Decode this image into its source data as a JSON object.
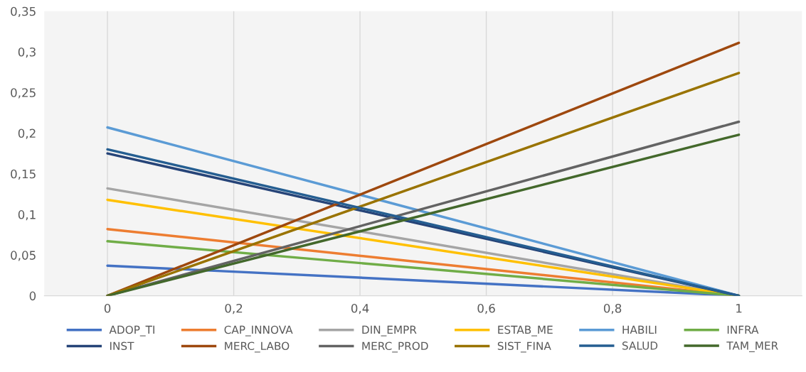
{
  "chart_data": {
    "type": "line",
    "x": [
      0,
      1
    ],
    "series": [
      {
        "name": "ADOP_TI",
        "color": "#4472c4",
        "values": [
          0.037,
          0
        ]
      },
      {
        "name": "CAP_INNOVA",
        "color": "#ed7d31",
        "values": [
          0.082,
          0
        ]
      },
      {
        "name": "DIN_EMPR",
        "color": "#a5a5a5",
        "values": [
          0.132,
          0
        ]
      },
      {
        "name": "ESTAB_ME",
        "color": "#ffc000",
        "values": [
          0.118,
          0
        ]
      },
      {
        "name": "HABILI",
        "color": "#5b9bd5",
        "values": [
          0.207,
          0
        ]
      },
      {
        "name": "INFRA",
        "color": "#70ad47",
        "values": [
          0.067,
          0
        ]
      },
      {
        "name": "INST",
        "color": "#264478",
        "values": [
          0.175,
          0
        ]
      },
      {
        "name": "MERC_LABO",
        "color": "#9e480e",
        "values": [
          0,
          0.311
        ]
      },
      {
        "name": "MERC_PROD",
        "color": "#636363",
        "values": [
          0,
          0.214
        ]
      },
      {
        "name": "SIST_FINA",
        "color": "#997300",
        "values": [
          0,
          0.274
        ]
      },
      {
        "name": "SALUD",
        "color": "#255e91",
        "values": [
          0.18,
          0
        ]
      },
      {
        "name": "TAM_MER",
        "color": "#43682b",
        "values": [
          0,
          0.198
        ]
      }
    ],
    "xlim": [
      -0.1,
      1.1
    ],
    "xticks": [
      {
        "value": 0,
        "label": "0"
      },
      {
        "value": 0.2,
        "label": "0,2"
      },
      {
        "value": 0.4,
        "label": "0,4"
      },
      {
        "value": 0.6,
        "label": "0,6"
      },
      {
        "value": 0.8,
        "label": "0,8"
      },
      {
        "value": 1,
        "label": "1"
      }
    ],
    "ylim": [
      0,
      0.35
    ],
    "yticks": [
      {
        "value": 0,
        "label": "0"
      },
      {
        "value": 0.05,
        "label": "0,05"
      },
      {
        "value": 0.1,
        "label": "0,1"
      },
      {
        "value": 0.15,
        "label": "0,15"
      },
      {
        "value": 0.2,
        "label": "0,2"
      },
      {
        "value": 0.25,
        "label": "0,25"
      },
      {
        "value": 0.3,
        "label": "0,3"
      },
      {
        "value": 0.35,
        "label": "0,35"
      }
    ],
    "grid": "x",
    "legend": "bottom",
    "marker": "none",
    "line_style": "solid"
  }
}
